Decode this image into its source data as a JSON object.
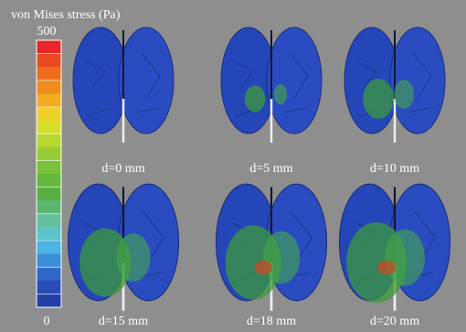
{
  "colorbar": {
    "label": "von Mises stress (Pa)",
    "max": 500,
    "min": 0
  },
  "panels": [
    {
      "label": "d=0 mm"
    },
    {
      "label": "d=5 mm"
    },
    {
      "label": "d=10 mm"
    },
    {
      "label": "d=15 mm"
    },
    {
      "label": "d=18 mm"
    },
    {
      "label": "d=20 mm"
    }
  ]
}
